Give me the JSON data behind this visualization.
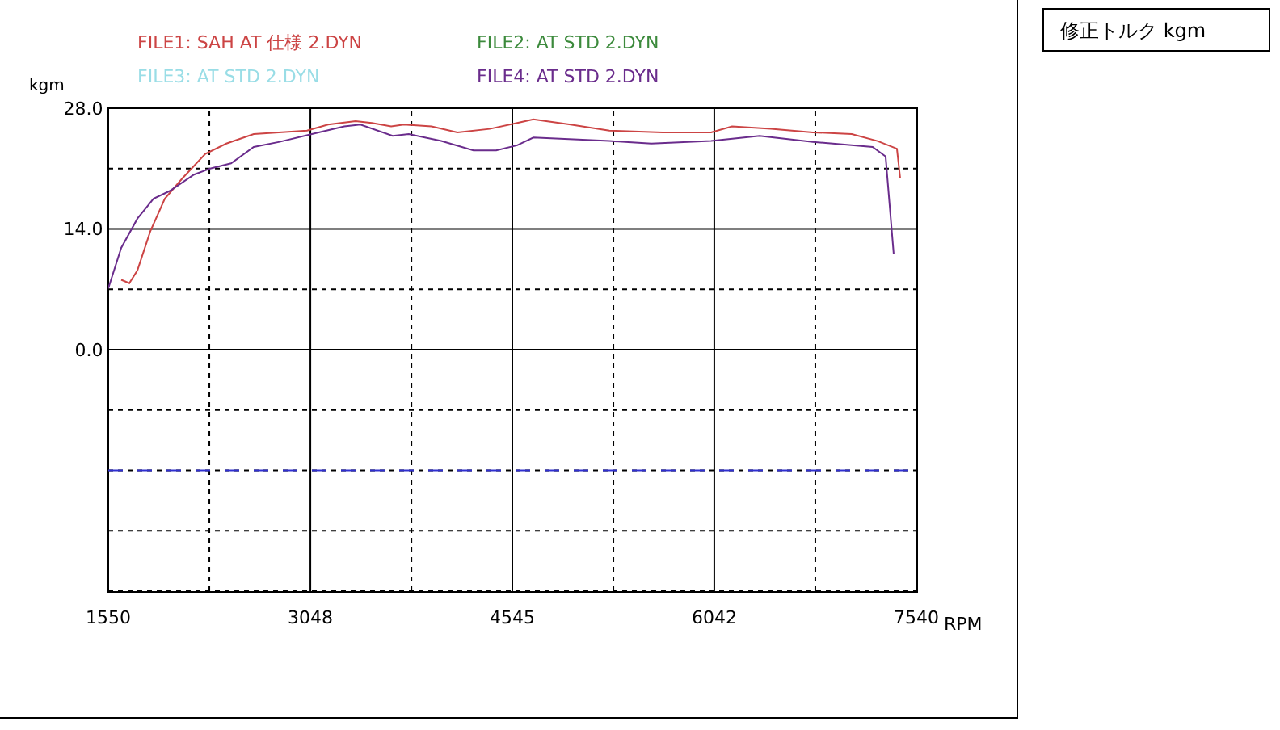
{
  "chart_data": {
    "type": "line",
    "xlabel": "RPM",
    "ylabel": "kgm",
    "annotations": [
      "修正トルク kgm"
    ],
    "xlim": [
      1550,
      7540
    ],
    "xticks": [
      1550,
      {
        "value": 2299,
        "label": null
      },
      3048,
      {
        "value": 3797,
        "label": null
      },
      4545,
      {
        "value": 5294,
        "label": null
      },
      6042,
      {
        "value": 6791,
        "label": null
      },
      7540
    ],
    "ylim": [
      -28,
      28
    ],
    "yticks": [
      {
        "value": -28,
        "label": null
      },
      {
        "value": -21,
        "label": null
      },
      {
        "value": -14,
        "label": null
      },
      {
        "value": -7,
        "label": null
      },
      {
        "value": 0,
        "label": "0.0"
      },
      {
        "value": 7,
        "label": null
      },
      {
        "value": 14,
        "label": "14.0"
      },
      {
        "value": 21,
        "label": null
      },
      {
        "value": 28,
        "label": "28.0"
      }
    ],
    "grid": true,
    "legend": "top",
    "marker": "none",
    "line_style": "solid",
    "ref_lines": [
      {
        "axis": "y",
        "value": -14,
        "color": "#3030d0",
        "line_style": "dashed"
      }
    ],
    "series": [
      {
        "name": "FILE1: SAH AT 仕様 2.DYN",
        "color": "#cc4444",
        "x": [
          1646,
          1706,
          1766,
          1861,
          1969,
          2101,
          2269,
          2425,
          2628,
          3023,
          3179,
          3383,
          3503,
          3647,
          3742,
          3946,
          4138,
          4377,
          4581,
          4701,
          4977,
          5264,
          5659,
          6018,
          6174,
          6462,
          6773,
          7061,
          7252,
          7396,
          7420
        ],
        "values": [
          8.1,
          7.7,
          9.2,
          13.7,
          17.5,
          19.9,
          22.7,
          23.9,
          25.0,
          25.4,
          26.1,
          26.5,
          26.3,
          25.9,
          26.1,
          25.9,
          25.2,
          25.6,
          26.3,
          26.7,
          26.1,
          25.4,
          25.2,
          25.2,
          25.9,
          25.6,
          25.2,
          25.0,
          24.2,
          23.3,
          19.9
        ]
      },
      {
        "name": "FILE2: AT STD 2.DYN",
        "color": "#3c8a3c"
      },
      {
        "name": "FILE3: AT STD 2.DYN",
        "color": "#99dde6"
      },
      {
        "name": "FILE4: AT STD 2.DYN",
        "color": "#6a2c8c",
        "x": [
          1550,
          1646,
          1766,
          1885,
          2005,
          2185,
          2305,
          2460,
          2628,
          2820,
          3059,
          3299,
          3419,
          3658,
          3778,
          4018,
          4257,
          4425,
          4581,
          4701,
          5264,
          5575,
          6018,
          6378,
          6773,
          7216,
          7312,
          7372
        ],
        "values": [
          7.1,
          11.8,
          15.2,
          17.5,
          18.4,
          20.3,
          21.0,
          21.6,
          23.5,
          24.1,
          25.0,
          25.9,
          26.1,
          24.8,
          25.0,
          24.2,
          23.1,
          23.1,
          23.7,
          24.6,
          24.2,
          23.9,
          24.2,
          24.8,
          24.1,
          23.5,
          22.4,
          11.1
        ]
      }
    ]
  }
}
